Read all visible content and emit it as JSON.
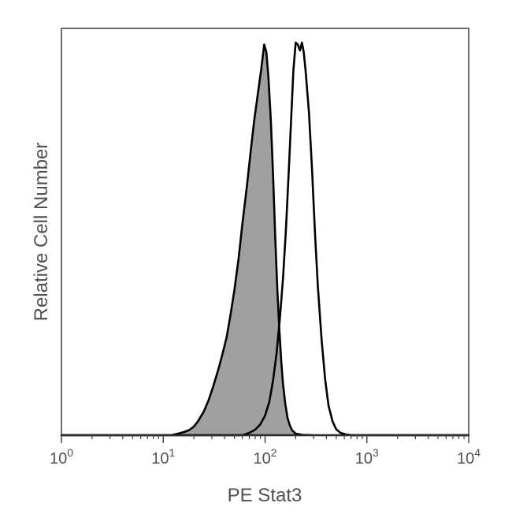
{
  "chart_data": {
    "type": "area",
    "title": "",
    "xlabel": "PE Stat3",
    "ylabel": "Relative Cell Number",
    "x_scale": "log10",
    "xlim": [
      1,
      10000
    ],
    "ylim": [
      0,
      1
    ],
    "grid": false,
    "legend": "none",
    "x_ticks": [
      {
        "value": 1,
        "base": "10",
        "exp": "0"
      },
      {
        "value": 10,
        "base": "10",
        "exp": "1"
      },
      {
        "value": 100,
        "base": "10",
        "exp": "2"
      },
      {
        "value": 1000,
        "base": "10",
        "exp": "3"
      },
      {
        "value": 10000,
        "base": "10",
        "exp": "4"
      }
    ],
    "series": [
      {
        "fill": "#a0a0a0",
        "stroke": "#000000",
        "filled": true,
        "x": [
          1,
          12,
          14,
          16,
          18,
          20,
          22,
          25,
          28,
          31,
          35,
          38,
          42,
          46,
          50,
          55,
          60,
          66,
          72,
          78,
          85,
          92,
          98,
          103,
          108,
          114,
          120,
          126,
          132,
          138,
          144,
          150,
          158,
          166,
          175,
          185,
          200,
          230,
          300,
          10000
        ],
        "y": [
          0,
          0,
          0.004,
          0.008,
          0.013,
          0.022,
          0.036,
          0.06,
          0.09,
          0.125,
          0.17,
          0.205,
          0.25,
          0.31,
          0.37,
          0.45,
          0.54,
          0.63,
          0.72,
          0.8,
          0.87,
          0.935,
          0.995,
          0.975,
          0.91,
          0.8,
          0.66,
          0.5,
          0.37,
          0.27,
          0.19,
          0.13,
          0.08,
          0.045,
          0.025,
          0.012,
          0.004,
          0.001,
          0,
          0
        ]
      },
      {
        "fill": "none",
        "stroke": "#000000",
        "filled": false,
        "x": [
          1,
          60,
          70,
          80,
          90,
          100,
          110,
          120,
          130,
          140,
          150,
          160,
          170,
          180,
          190,
          200,
          210,
          220,
          230,
          240,
          250,
          270,
          290,
          310,
          330,
          360,
          390,
          420,
          460,
          500,
          550,
          620,
          700,
          10000
        ],
        "y": [
          0,
          0,
          0.006,
          0.014,
          0.028,
          0.05,
          0.085,
          0.14,
          0.21,
          0.3,
          0.4,
          0.52,
          0.66,
          0.8,
          0.93,
          1.0,
          0.995,
          0.98,
          1.0,
          0.975,
          0.93,
          0.82,
          0.67,
          0.51,
          0.38,
          0.24,
          0.14,
          0.075,
          0.035,
          0.015,
          0.006,
          0.002,
          0,
          0
        ]
      }
    ]
  }
}
